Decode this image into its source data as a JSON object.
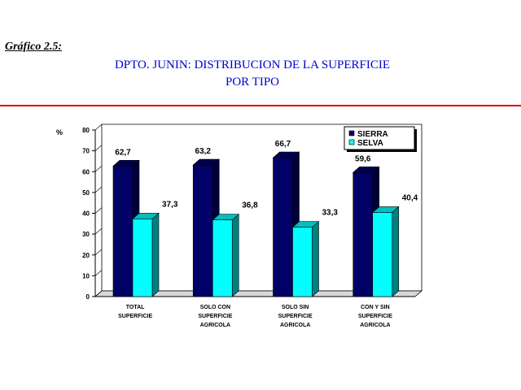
{
  "figure_label": "Gráfico 2.5:",
  "title_line1": "DPTO. JUNIN: DISTRIBUCION DE LA SUPERFICIE",
  "title_line2": "POR TIPO",
  "colors": {
    "title": "#0000cc",
    "rule": "#e00000",
    "sierra": "#000066",
    "selva": "#00ffff"
  },
  "chart_data": {
    "type": "bar",
    "ylabel": "%",
    "ylim": [
      0,
      80
    ],
    "yticks": [
      0,
      10,
      20,
      30,
      40,
      50,
      60,
      70,
      80
    ],
    "categories": [
      [
        "TOTAL",
        "SUPERFICIE"
      ],
      [
        "SOLO CON",
        "SUPERFICIE",
        "AGRICOLA"
      ],
      [
        "SOLO SIN",
        "SUPERFICIE",
        "AGRICOLA"
      ],
      [
        "CON Y SIN",
        "SUPERFICIE",
        "AGRICOLA"
      ]
    ],
    "series": [
      {
        "name": "SIERRA",
        "values": [
          62.7,
          63.2,
          66.7,
          59.6
        ],
        "labels": [
          "62,7",
          "63,2",
          "66,7",
          "59,6"
        ]
      },
      {
        "name": "SELVA",
        "values": [
          37.3,
          36.8,
          33.3,
          40.4
        ],
        "labels": [
          "37,3",
          "36,8",
          "33,3",
          "40,4"
        ]
      }
    ],
    "legend_position": "top-right",
    "grid": false,
    "style": "3d"
  }
}
